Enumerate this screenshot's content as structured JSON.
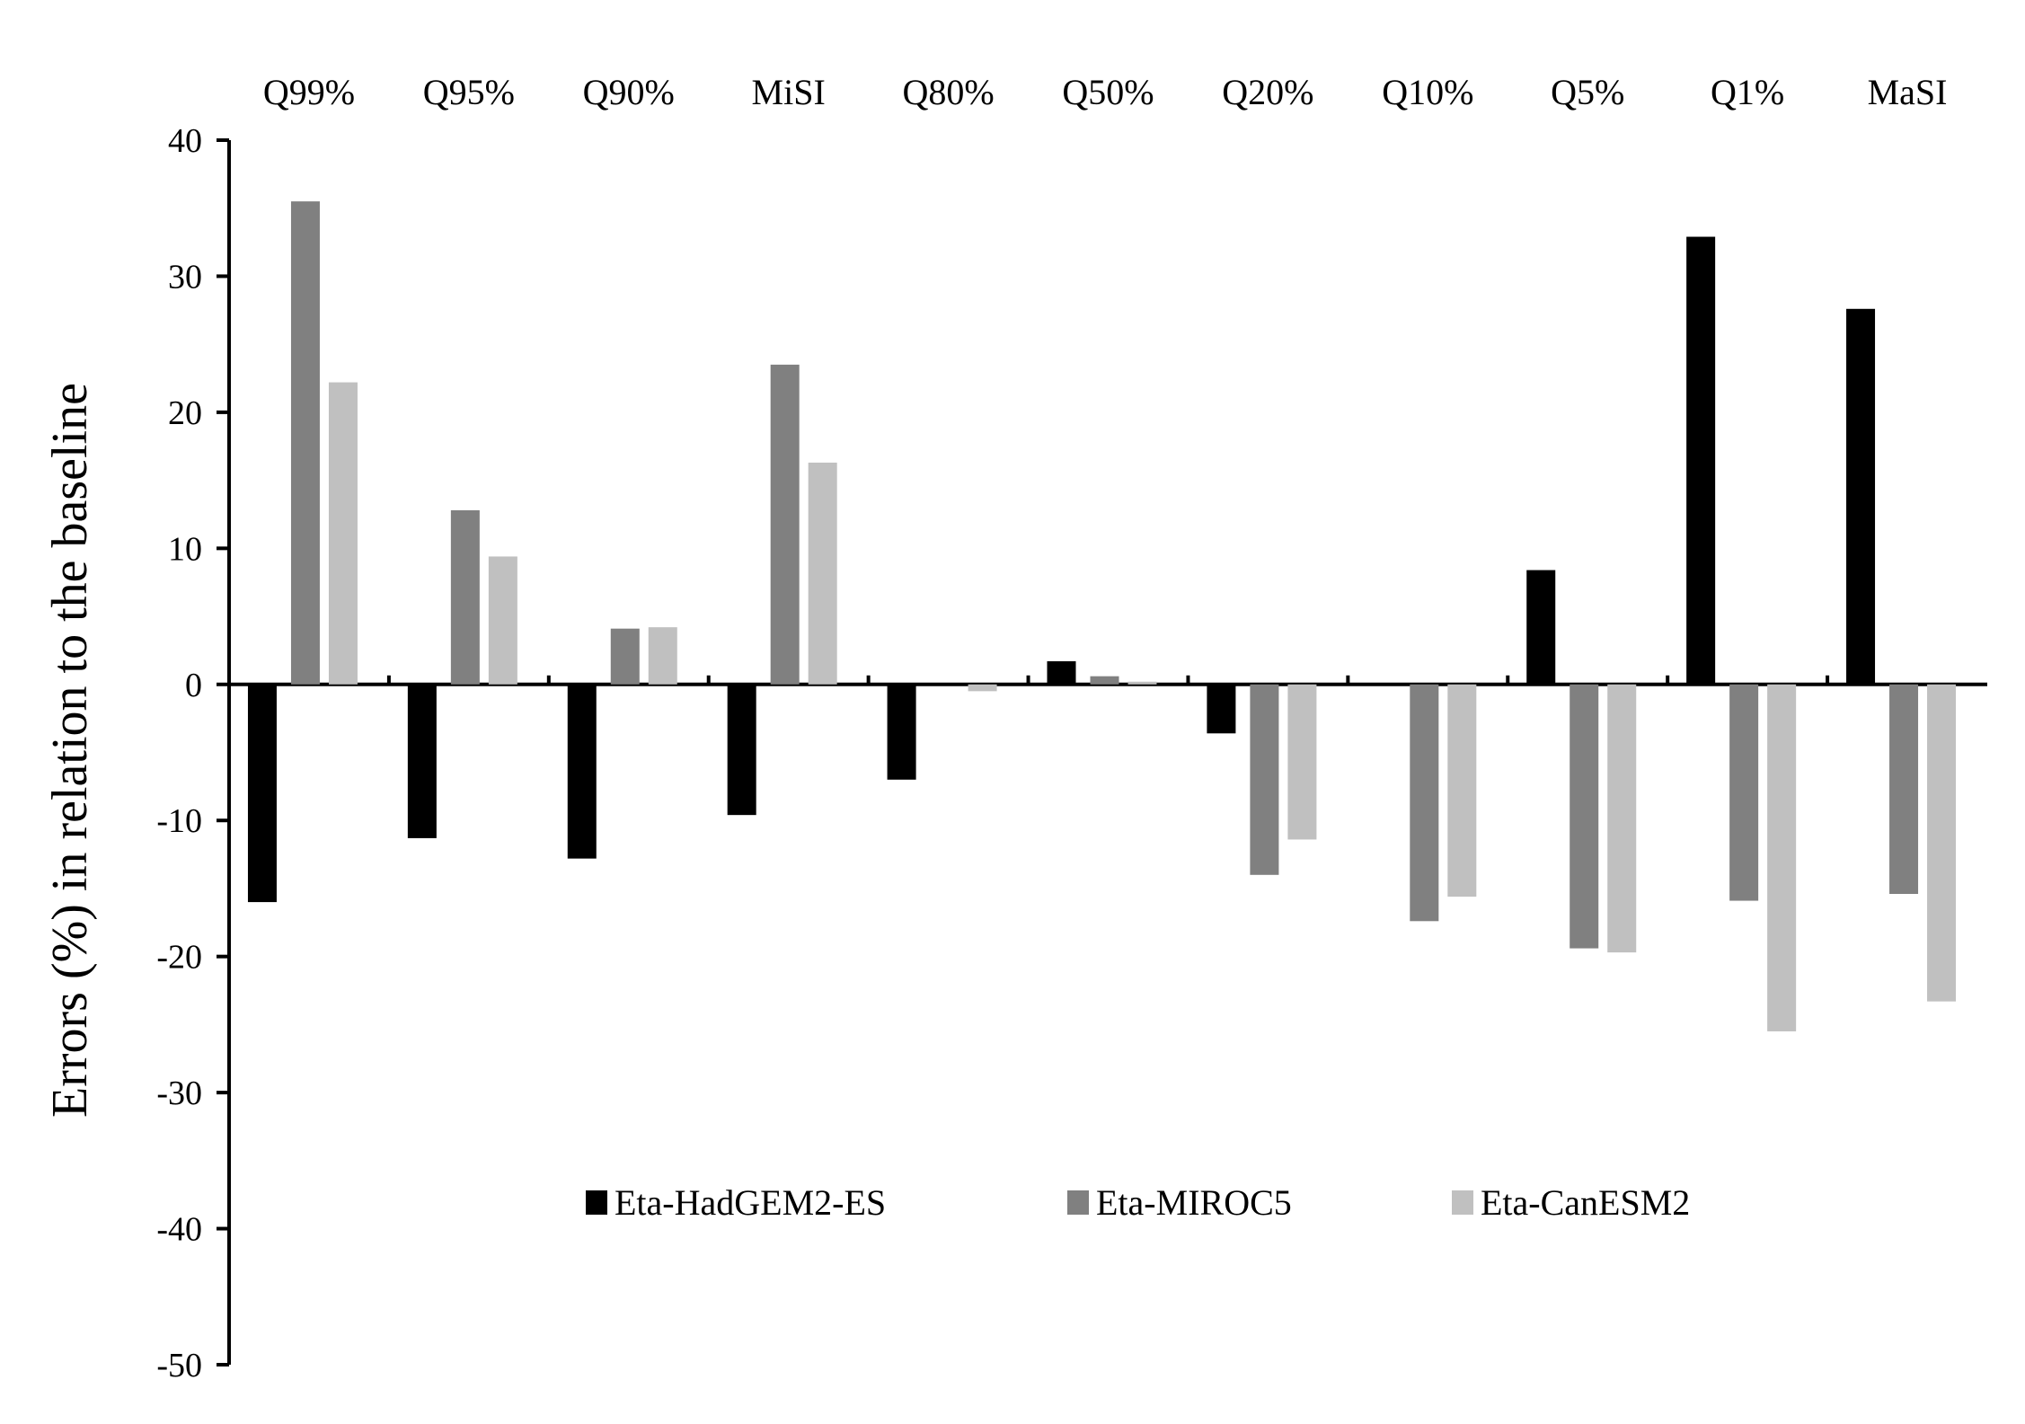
{
  "chart_data": {
    "type": "bar",
    "title": "",
    "xlabel": "",
    "ylabel": "Errors (%) in relation to the baseline",
    "ylim": [
      -50,
      40
    ],
    "yticks": [
      40,
      30,
      20,
      10,
      0,
      -10,
      -20,
      -30,
      -40,
      -50
    ],
    "categories": [
      "Q99%",
      "Q95%",
      "Q90%",
      "MiSI",
      "Q80%",
      "Q50%",
      "Q20%",
      "Q10%",
      "Q5%",
      "Q1%",
      "MaSI"
    ],
    "category_label_position": "top",
    "legend_position": "bottom-center",
    "grid": false,
    "series": [
      {
        "name": "Eta-HadGEM2-ES",
        "color": "#000000",
        "values": [
          -16.0,
          -11.3,
          -12.8,
          -9.6,
          -7.0,
          1.7,
          -3.6,
          0.0,
          8.4,
          32.9,
          27.6
        ]
      },
      {
        "name": "Eta-MIROC5",
        "color": "#808080",
        "values": [
          35.5,
          12.8,
          4.1,
          23.5,
          0.0,
          0.6,
          -14.0,
          -17.4,
          -19.4,
          -15.9,
          -15.4
        ]
      },
      {
        "name": "Eta-CanESM2",
        "color": "#c0c0c0",
        "values": [
          22.2,
          9.4,
          4.2,
          16.3,
          -0.5,
          0.2,
          -11.4,
          -15.6,
          -19.7,
          -25.5,
          -23.3
        ]
      }
    ]
  }
}
